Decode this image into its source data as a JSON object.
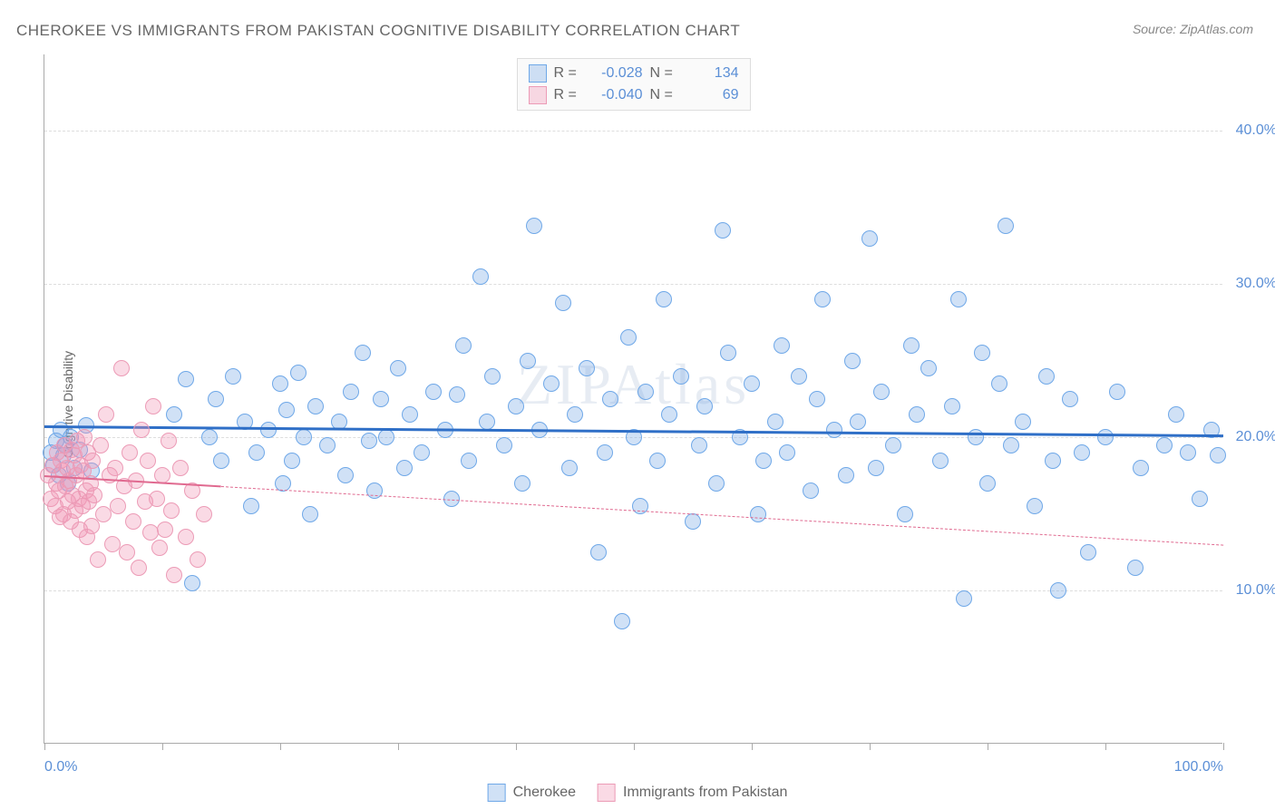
{
  "title": "CHEROKEE VS IMMIGRANTS FROM PAKISTAN COGNITIVE DISABILITY CORRELATION CHART",
  "source_prefix": "Source: ",
  "source_name": "ZipAtlas.com",
  "watermark": "ZIPAtlas",
  "y_axis_label": "Cognitive Disability",
  "chart": {
    "type": "scatter",
    "xlim": [
      0,
      100
    ],
    "ylim": [
      0,
      45
    ],
    "y_ticks": [
      10,
      20,
      30,
      40
    ],
    "y_tick_labels": [
      "10.0%",
      "20.0%",
      "30.0%",
      "40.0%"
    ],
    "x_ticks": [
      0,
      10,
      20,
      30,
      40,
      50,
      60,
      70,
      80,
      90,
      100
    ],
    "x_tick_labels_shown": {
      "0": "0.0%",
      "100": "100.0%"
    },
    "background_color": "#ffffff",
    "grid_color": "#dddddd",
    "axis_color": "#aaaaaa",
    "tick_label_color": "#5b8fd6",
    "point_radius": 9,
    "point_stroke_width": 1.5,
    "series": [
      {
        "name": "Cherokee",
        "fill_color": "rgba(120,170,230,0.35)",
        "stroke_color": "#6fa8e8",
        "trend_color": "#2f6fc7",
        "trend_width": 3,
        "trend_dash": "solid",
        "R": "-0.028",
        "N": "134",
        "trend": {
          "x1": 0,
          "y1": 20.8,
          "x2": 100,
          "y2": 20.2
        },
        "points": [
          [
            0.5,
            19.0
          ],
          [
            0.8,
            18.2
          ],
          [
            1.0,
            19.8
          ],
          [
            1.2,
            17.5
          ],
          [
            1.4,
            20.5
          ],
          [
            1.6,
            18.8
          ],
          [
            1.8,
            19.5
          ],
          [
            2.0,
            17.0
          ],
          [
            2.2,
            20.0
          ],
          [
            2.5,
            18.0
          ],
          [
            3.0,
            19.2
          ],
          [
            3.5,
            20.8
          ],
          [
            4.0,
            17.8
          ],
          [
            11.0,
            21.5
          ],
          [
            12.0,
            23.8
          ],
          [
            12.5,
            10.5
          ],
          [
            14.0,
            20.0
          ],
          [
            14.5,
            22.5
          ],
          [
            15.0,
            18.5
          ],
          [
            16.0,
            24.0
          ],
          [
            17.0,
            21.0
          ],
          [
            17.5,
            15.5
          ],
          [
            18.0,
            19.0
          ],
          [
            19.0,
            20.5
          ],
          [
            20.0,
            23.5
          ],
          [
            20.2,
            17.0
          ],
          [
            20.5,
            21.8
          ],
          [
            21.0,
            18.5
          ],
          [
            21.5,
            24.2
          ],
          [
            22.0,
            20.0
          ],
          [
            22.5,
            15.0
          ],
          [
            23.0,
            22.0
          ],
          [
            24.0,
            19.5
          ],
          [
            25.0,
            21.0
          ],
          [
            25.5,
            17.5
          ],
          [
            26.0,
            23.0
          ],
          [
            27.0,
            25.5
          ],
          [
            27.5,
            19.8
          ],
          [
            28.0,
            16.5
          ],
          [
            28.5,
            22.5
          ],
          [
            29.0,
            20.0
          ],
          [
            30.0,
            24.5
          ],
          [
            30.5,
            18.0
          ],
          [
            31.0,
            21.5
          ],
          [
            32.0,
            19.0
          ],
          [
            33.0,
            23.0
          ],
          [
            34.0,
            20.5
          ],
          [
            34.5,
            16.0
          ],
          [
            35.0,
            22.8
          ],
          [
            35.5,
            26.0
          ],
          [
            36.0,
            18.5
          ],
          [
            37.0,
            30.5
          ],
          [
            37.5,
            21.0
          ],
          [
            38.0,
            24.0
          ],
          [
            39.0,
            19.5
          ],
          [
            40.0,
            22.0
          ],
          [
            40.5,
            17.0
          ],
          [
            41.0,
            25.0
          ],
          [
            41.5,
            33.8
          ],
          [
            42.0,
            20.5
          ],
          [
            43.0,
            23.5
          ],
          [
            44.0,
            28.8
          ],
          [
            44.5,
            18.0
          ],
          [
            45.0,
            21.5
          ],
          [
            46.0,
            24.5
          ],
          [
            47.0,
            12.5
          ],
          [
            47.5,
            19.0
          ],
          [
            48.0,
            22.5
          ],
          [
            49.0,
            8.0
          ],
          [
            49.5,
            26.5
          ],
          [
            50.0,
            20.0
          ],
          [
            50.5,
            15.5
          ],
          [
            51.0,
            23.0
          ],
          [
            52.0,
            18.5
          ],
          [
            52.5,
            29.0
          ],
          [
            53.0,
            21.5
          ],
          [
            54.0,
            24.0
          ],
          [
            55.0,
            14.5
          ],
          [
            55.5,
            19.5
          ],
          [
            56.0,
            22.0
          ],
          [
            57.0,
            17.0
          ],
          [
            57.5,
            33.5
          ],
          [
            58.0,
            25.5
          ],
          [
            59.0,
            20.0
          ],
          [
            60.0,
            23.5
          ],
          [
            60.5,
            15.0
          ],
          [
            61.0,
            18.5
          ],
          [
            62.0,
            21.0
          ],
          [
            62.5,
            26.0
          ],
          [
            63.0,
            19.0
          ],
          [
            64.0,
            24.0
          ],
          [
            65.0,
            16.5
          ],
          [
            65.5,
            22.5
          ],
          [
            66.0,
            29.0
          ],
          [
            67.0,
            20.5
          ],
          [
            68.0,
            17.5
          ],
          [
            68.5,
            25.0
          ],
          [
            69.0,
            21.0
          ],
          [
            70.0,
            33.0
          ],
          [
            70.5,
            18.0
          ],
          [
            71.0,
            23.0
          ],
          [
            72.0,
            19.5
          ],
          [
            73.0,
            15.0
          ],
          [
            73.5,
            26.0
          ],
          [
            74.0,
            21.5
          ],
          [
            75.0,
            24.5
          ],
          [
            76.0,
            18.5
          ],
          [
            77.0,
            22.0
          ],
          [
            77.5,
            29.0
          ],
          [
            78.0,
            9.5
          ],
          [
            79.0,
            20.0
          ],
          [
            79.5,
            25.5
          ],
          [
            80.0,
            17.0
          ],
          [
            81.0,
            23.5
          ],
          [
            81.5,
            33.8
          ],
          [
            82.0,
            19.5
          ],
          [
            83.0,
            21.0
          ],
          [
            84.0,
            15.5
          ],
          [
            85.0,
            24.0
          ],
          [
            85.5,
            18.5
          ],
          [
            86.0,
            10.0
          ],
          [
            87.0,
            22.5
          ],
          [
            88.0,
            19.0
          ],
          [
            88.5,
            12.5
          ],
          [
            90.0,
            20.0
          ],
          [
            91.0,
            23.0
          ],
          [
            92.5,
            11.5
          ],
          [
            93.0,
            18.0
          ],
          [
            95.0,
            19.5
          ],
          [
            96.0,
            21.5
          ],
          [
            97.0,
            19.0
          ],
          [
            98.0,
            16.0
          ],
          [
            99.0,
            20.5
          ],
          [
            99.5,
            18.8
          ]
        ]
      },
      {
        "name": "Immigrants from Pakistan",
        "fill_color": "rgba(240,150,180,0.35)",
        "stroke_color": "#ec9bb6",
        "trend_color": "#e06a90",
        "trend_width": 2,
        "trend_dash_solid_until": 15,
        "trend_dash": "dashed",
        "R": "-0.040",
        "N": "69",
        "trend": {
          "x1": 0,
          "y1": 17.5,
          "x2": 100,
          "y2": 13.0
        },
        "points": [
          [
            0.3,
            17.5
          ],
          [
            0.5,
            16.0
          ],
          [
            0.7,
            18.2
          ],
          [
            0.9,
            15.5
          ],
          [
            1.0,
            17.0
          ],
          [
            1.1,
            19.0
          ],
          [
            1.2,
            16.5
          ],
          [
            1.3,
            14.8
          ],
          [
            1.4,
            18.5
          ],
          [
            1.5,
            17.8
          ],
          [
            1.6,
            15.0
          ],
          [
            1.7,
            19.5
          ],
          [
            1.8,
            16.8
          ],
          [
            1.9,
            18.0
          ],
          [
            2.0,
            15.8
          ],
          [
            2.1,
            17.2
          ],
          [
            2.2,
            14.5
          ],
          [
            2.3,
            19.2
          ],
          [
            2.4,
            16.2
          ],
          [
            2.5,
            18.8
          ],
          [
            2.6,
            15.2
          ],
          [
            2.7,
            17.5
          ],
          [
            2.8,
            19.8
          ],
          [
            2.9,
            16.0
          ],
          [
            3.0,
            14.0
          ],
          [
            3.1,
            18.2
          ],
          [
            3.2,
            15.5
          ],
          [
            3.3,
            17.8
          ],
          [
            3.4,
            20.0
          ],
          [
            3.5,
            16.5
          ],
          [
            3.6,
            13.5
          ],
          [
            3.7,
            19.0
          ],
          [
            3.8,
            15.8
          ],
          [
            3.9,
            17.0
          ],
          [
            4.0,
            14.2
          ],
          [
            4.1,
            18.5
          ],
          [
            4.2,
            16.2
          ],
          [
            4.5,
            12.0
          ],
          [
            4.8,
            19.5
          ],
          [
            5.0,
            15.0
          ],
          [
            5.2,
            21.5
          ],
          [
            5.5,
            17.5
          ],
          [
            5.8,
            13.0
          ],
          [
            6.0,
            18.0
          ],
          [
            6.2,
            15.5
          ],
          [
            6.5,
            24.5
          ],
          [
            6.8,
            16.8
          ],
          [
            7.0,
            12.5
          ],
          [
            7.2,
            19.0
          ],
          [
            7.5,
            14.5
          ],
          [
            7.8,
            17.2
          ],
          [
            8.0,
            11.5
          ],
          [
            8.2,
            20.5
          ],
          [
            8.5,
            15.8
          ],
          [
            8.8,
            18.5
          ],
          [
            9.0,
            13.8
          ],
          [
            9.2,
            22.0
          ],
          [
            9.5,
            16.0
          ],
          [
            9.8,
            12.8
          ],
          [
            10.0,
            17.5
          ],
          [
            10.2,
            14.0
          ],
          [
            10.5,
            19.8
          ],
          [
            10.8,
            15.2
          ],
          [
            11.0,
            11.0
          ],
          [
            11.5,
            18.0
          ],
          [
            12.0,
            13.5
          ],
          [
            12.5,
            16.5
          ],
          [
            13.0,
            12.0
          ],
          [
            13.5,
            15.0
          ]
        ]
      }
    ]
  },
  "legend_top_labels": {
    "R": "R =",
    "N": "N ="
  },
  "legend_bottom": [
    "Cherokee",
    "Immigrants from Pakistan"
  ]
}
